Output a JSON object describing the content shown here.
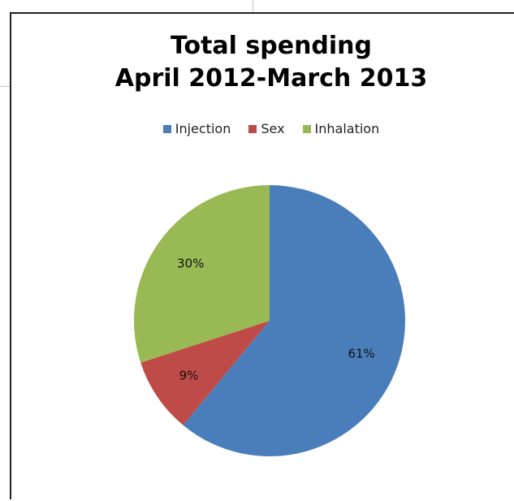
{
  "chart_data": {
    "type": "pie",
    "title_line1": "Total spending",
    "title_line2": "April 2012-March 2013",
    "legend_position": "top",
    "slices": [
      {
        "name": "Injection",
        "value": 61,
        "label": "61%",
        "color": "#4a7ebb"
      },
      {
        "name": "Sex",
        "value": 9,
        "label": "9%",
        "color": "#be4b48"
      },
      {
        "name": "Inhalation",
        "value": 30,
        "label": "30%",
        "color": "#98b954"
      }
    ]
  }
}
